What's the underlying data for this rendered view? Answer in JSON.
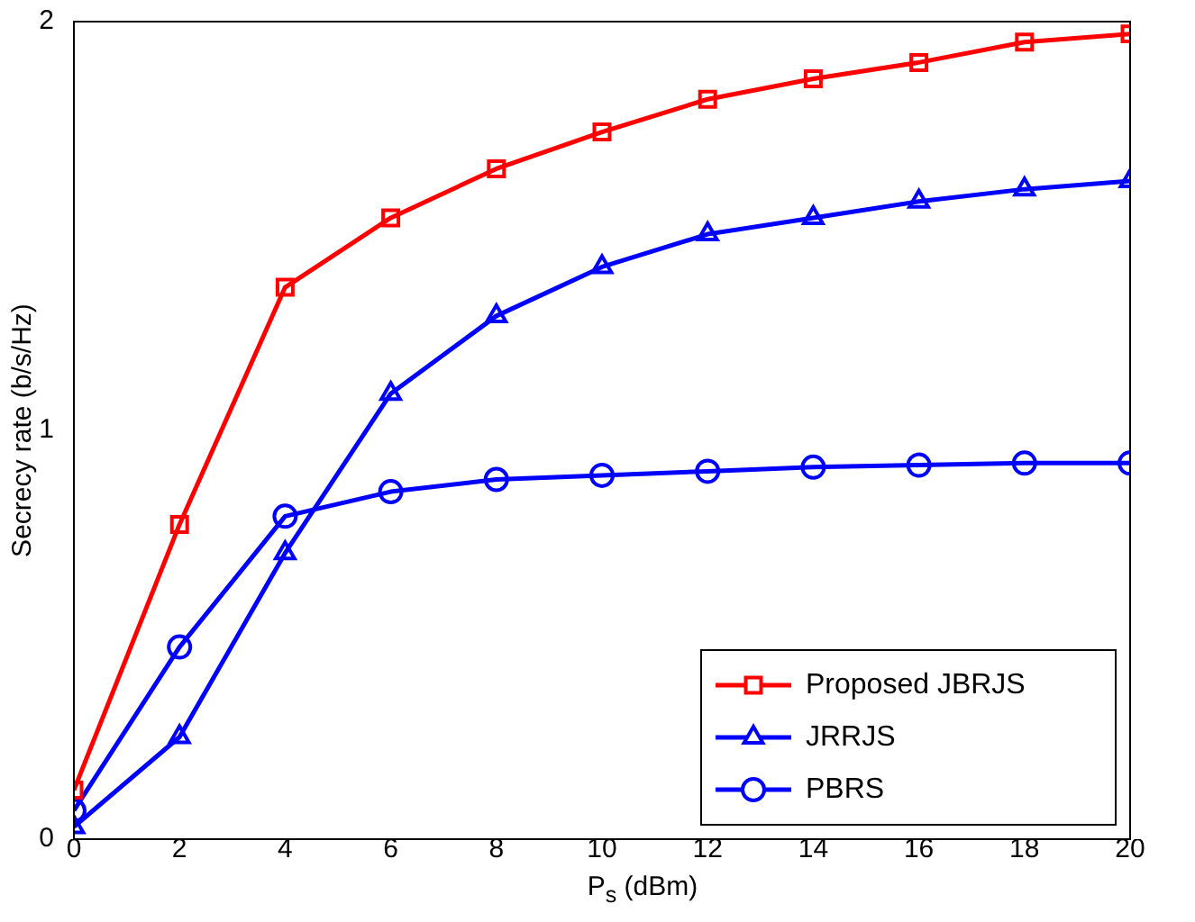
{
  "chart_data": {
    "type": "line",
    "xlabel": "P$_{s}$ (dBm)",
    "ylabel": "Secrecy rate (b/s/Hz)",
    "x": [
      0,
      2,
      4,
      6,
      8,
      10,
      12,
      14,
      16,
      18,
      20
    ],
    "series": [
      {
        "name": "Proposed JBRJS",
        "color": "#ff0000",
        "marker": "square",
        "values": [
          0.12,
          0.77,
          1.35,
          1.52,
          1.64,
          1.73,
          1.81,
          1.86,
          1.9,
          1.95,
          1.97
        ]
      },
      {
        "name": "JRRJS",
        "color": "#0000ff",
        "marker": "triangle",
        "values": [
          0.03,
          0.25,
          0.7,
          1.09,
          1.28,
          1.4,
          1.48,
          1.52,
          1.56,
          1.59,
          1.61
        ]
      },
      {
        "name": "PBRS",
        "color": "#0000ff",
        "marker": "circle",
        "values": [
          0.07,
          0.47,
          0.79,
          0.85,
          0.88,
          0.89,
          0.9,
          0.91,
          0.915,
          0.92,
          0.92
        ]
      }
    ],
    "xlim": [
      0,
      20
    ],
    "xticks": [
      0,
      2,
      4,
      6,
      8,
      10,
      12,
      14,
      16,
      18,
      20
    ],
    "ylim": [
      0,
      2
    ],
    "yticks": [
      0,
      1,
      2
    ],
    "grid": false,
    "legend": "bottom right",
    "line_style": "solid"
  }
}
